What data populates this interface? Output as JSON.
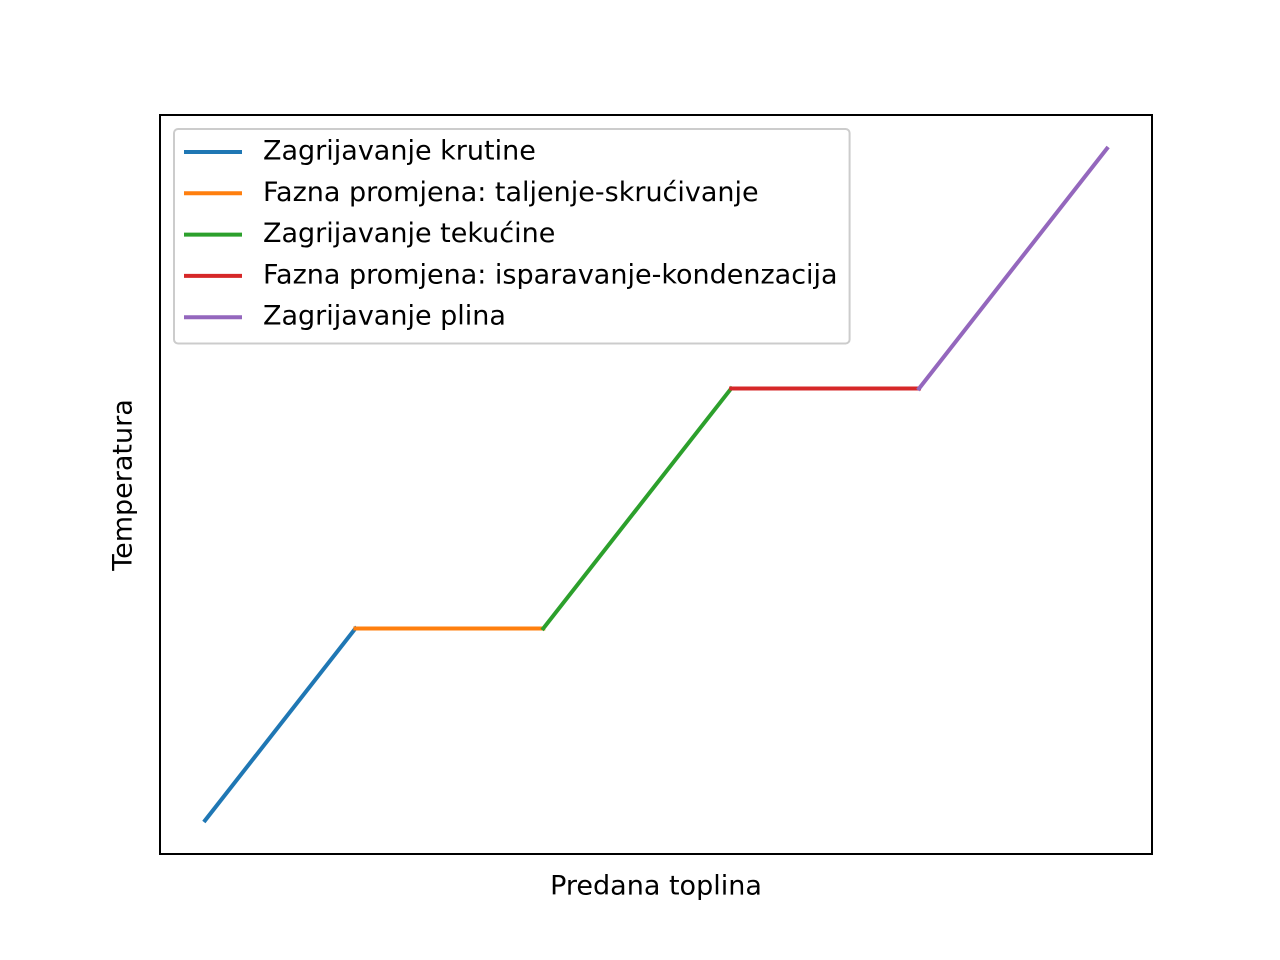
{
  "chart_data": {
    "type": "line",
    "xlabel": "Predana toplina",
    "ylabel": "Temperatura",
    "series": [
      {
        "name": "Zagrijavanje krutine",
        "color": "#1f77b4",
        "x": [
          0,
          0.8
        ],
        "values": [
          0,
          0.8
        ]
      },
      {
        "name": "Fazna promjena: taljenje-skrućivanje",
        "color": "#ff7f0e",
        "x": [
          0.8,
          1.8
        ],
        "values": [
          0.8,
          0.8
        ]
      },
      {
        "name": "Zagrijavanje tekućine",
        "color": "#2ca02c",
        "x": [
          1.8,
          2.8
        ],
        "values": [
          0.8,
          1.8
        ]
      },
      {
        "name": "Fazna promjena: isparavanje-kondenzacija",
        "color": "#d62728",
        "x": [
          2.8,
          3.8
        ],
        "values": [
          1.8,
          1.8
        ]
      },
      {
        "name": "Zagrijavanje plina",
        "color": "#9467bd",
        "x": [
          3.8,
          4.8
        ],
        "values": [
          1.8,
          2.8
        ]
      }
    ],
    "xlim": [
      -0.24,
      5.04
    ],
    "ylim": [
      -0.14,
      2.94
    ],
    "legend": "upper left"
  }
}
